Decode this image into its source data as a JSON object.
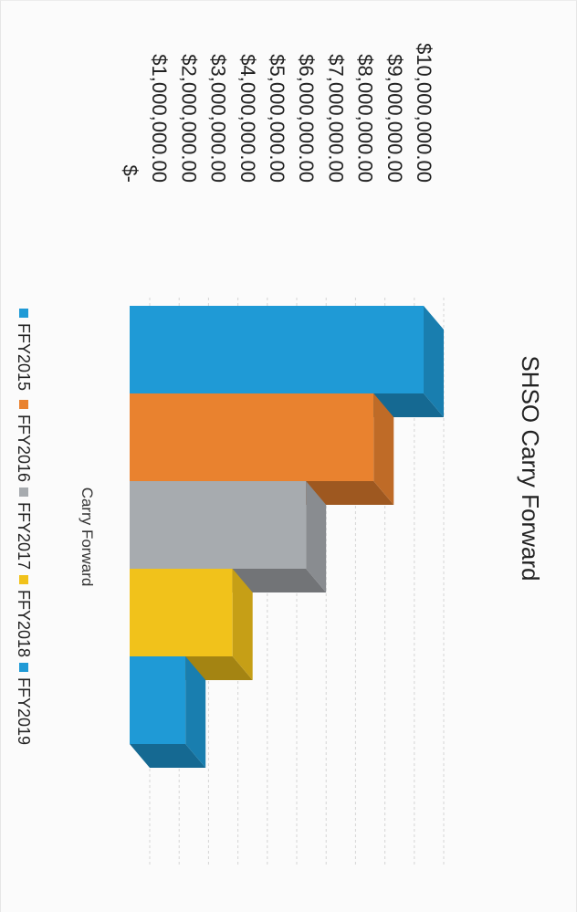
{
  "chart_data": {
    "type": "bar",
    "title": "SHSO Carry Forward",
    "categories": [
      "Carry Forward"
    ],
    "series": [
      {
        "name": "FFY2015",
        "values": [
          10000000
        ],
        "color": "#1f9ad6"
      },
      {
        "name": "FFY2016",
        "values": [
          8300000
        ],
        "color": "#e9822f"
      },
      {
        "name": "FFY2017",
        "values": [
          6000000
        ],
        "color": "#a7abaf"
      },
      {
        "name": "FFY2018",
        "values": [
          3500000
        ],
        "color": "#f1c21b"
      },
      {
        "name": "FFY2019",
        "values": [
          1900000
        ],
        "color": "#1f9ad6"
      }
    ],
    "y_tick_labels": [
      "$-",
      "$1,000,000.00",
      "$2,000,000.00",
      "$3,000,000.00",
      "$4,000,000.00",
      "$5,000,000.00",
      "$6,000,000.00",
      "$7,000,000.00",
      "$8,000,000.00",
      "$9,000,000.00",
      "$10,000,000.00"
    ],
    "ylim": [
      0,
      10000000
    ],
    "grid": true,
    "legend_position": "bottom",
    "style": "3d-column",
    "orientation": "rotated-90-clockwise"
  }
}
